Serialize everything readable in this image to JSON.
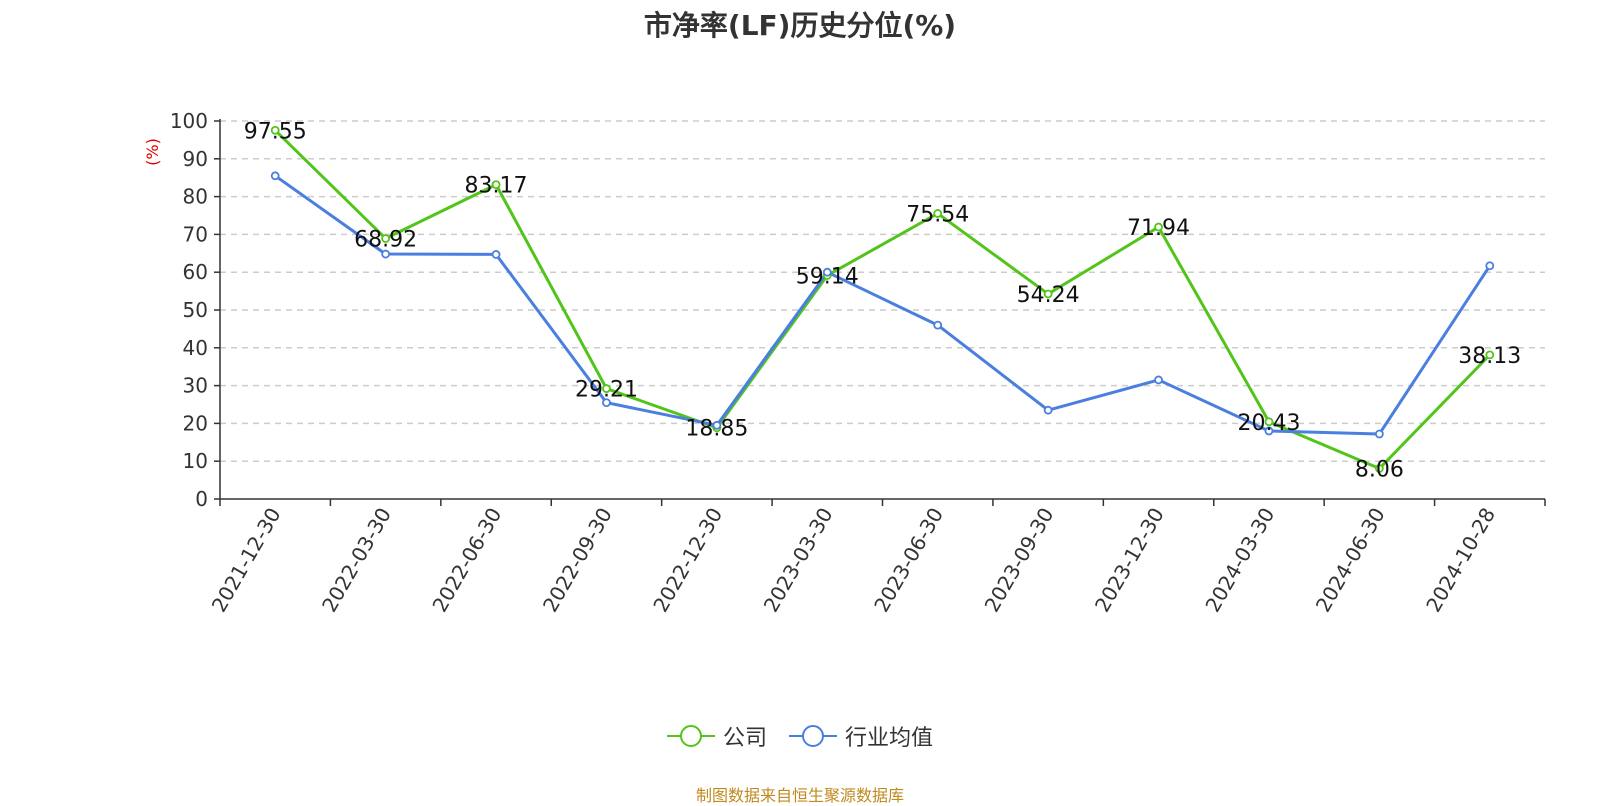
{
  "title": "市净率(LF)历史分位(%)",
  "source": "制图数据来自恒生聚源数据库",
  "colors": {
    "company": "#52c41a",
    "industry": "#4a7fe0",
    "grid": "#cccccc",
    "axis": "#333333",
    "unit": "#e00000"
  },
  "chart_data": {
    "type": "line",
    "title": "市净率(LF)历史分位(%)",
    "xlabel": "",
    "ylabel": "(%)",
    "ylim": [
      0,
      100
    ],
    "yticks": [
      0,
      10,
      20,
      30,
      40,
      50,
      60,
      70,
      80,
      90,
      100
    ],
    "grid": true,
    "legend_position": "bottom",
    "categories": [
      "2021-12-30",
      "2022-03-30",
      "2022-06-30",
      "2022-09-30",
      "2022-12-30",
      "2023-03-30",
      "2023-06-30",
      "2023-09-30",
      "2023-12-30",
      "2024-03-30",
      "2024-06-30",
      "2024-10-28"
    ],
    "series": [
      {
        "name": "公司",
        "values": [
          97.55,
          68.92,
          83.17,
          29.21,
          18.85,
          59.14,
          75.54,
          54.24,
          71.94,
          20.43,
          8.06,
          38.13
        ],
        "labels": [
          "97.55",
          "68.92",
          "83.17",
          "29.21",
          "18.85",
          "59.14",
          "75.54",
          "54.24",
          "71.94",
          "20.43",
          "8.06",
          "38.13"
        ]
      },
      {
        "name": "行业均值",
        "values": [
          85.5,
          64.8,
          64.7,
          25.5,
          19.5,
          60,
          46,
          23.5,
          31.5,
          18,
          17.2,
          61.7
        ]
      }
    ]
  }
}
